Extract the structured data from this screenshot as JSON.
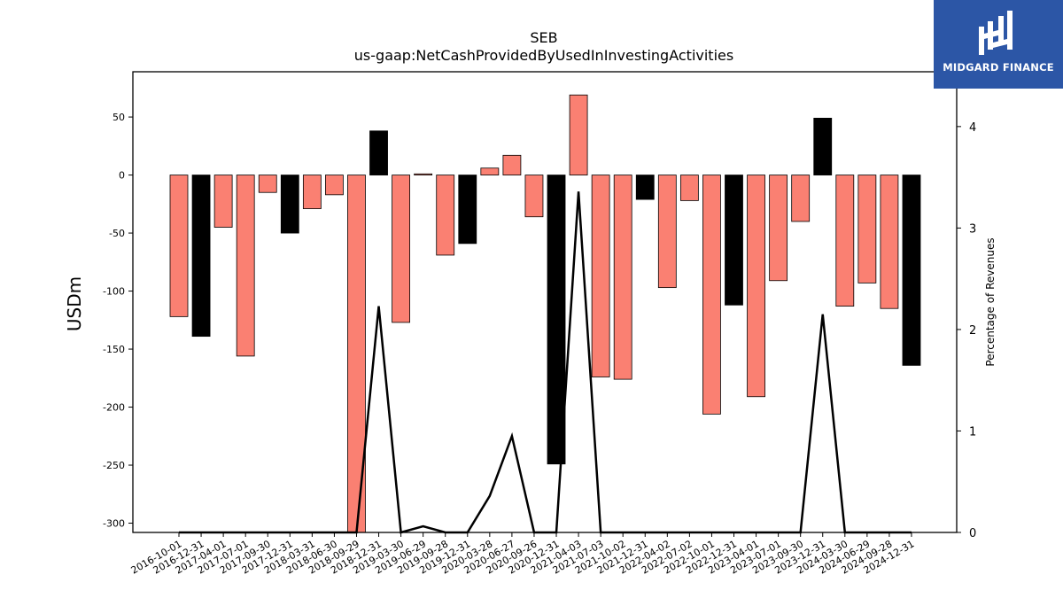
{
  "logo": {
    "text": "MIDGARD FINANCE",
    "color": "#2c56a6"
  },
  "chart_data": {
    "type": "bar",
    "title": "SEB",
    "subtitle": "us-gaap:NetCashProvidedByUsedInInvestingActivities",
    "ylabel": "USDm",
    "y2label": "Percentage of Revenues",
    "ylim": [
      -308,
      89
    ],
    "y2lim": [
      0,
      4.54
    ],
    "yticks": [
      50,
      0,
      -50,
      -100,
      -150,
      -200,
      -250,
      -300
    ],
    "y2ticks": [
      0,
      1,
      2,
      3,
      4
    ],
    "colors": {
      "positive_quarter": "#fa8072",
      "year_end": "#000000",
      "line": "#000000"
    },
    "categories": [
      "2016-10-01",
      "2016-12-31",
      "2017-04-01",
      "2017-07-01",
      "2017-09-30",
      "2017-12-31",
      "2018-03-31",
      "2018-06-30",
      "2018-09-29",
      "2018-12-31",
      "2019-03-30",
      "2019-06-29",
      "2019-09-28",
      "2019-12-31",
      "2020-03-28",
      "2020-06-27",
      "2020-09-26",
      "2020-12-31",
      "2021-04-03",
      "2021-07-03",
      "2021-10-02",
      "2021-12-31",
      "2022-04-02",
      "2022-07-02",
      "2022-10-01",
      "2022-12-31",
      "2023-04-01",
      "2023-07-01",
      "2023-09-30",
      "2023-12-31",
      "2024-03-30",
      "2024-06-29",
      "2024-09-28",
      "2024-12-31"
    ],
    "values": [
      -122,
      -139,
      -45,
      -156,
      -15,
      -50,
      -29,
      -17,
      -310,
      38,
      -127,
      1,
      -69,
      -59,
      6,
      17,
      -36,
      -249,
      69,
      -174,
      -176,
      -21,
      -97,
      -22,
      -206,
      -112,
      -191,
      -91,
      -40,
      49,
      -113,
      -93,
      -115,
      -164
    ],
    "year_end_flags": [
      false,
      true,
      false,
      false,
      false,
      true,
      false,
      false,
      false,
      true,
      false,
      false,
      false,
      true,
      false,
      false,
      false,
      true,
      false,
      false,
      false,
      true,
      false,
      false,
      false,
      true,
      false,
      false,
      false,
      true,
      false,
      false,
      false,
      true
    ],
    "line_series": {
      "name": "",
      "values": [
        0,
        0,
        0,
        0,
        0,
        0,
        0,
        0,
        0,
        2.23,
        0,
        0.06,
        0,
        0,
        0.36,
        0.95,
        0,
        0,
        3.36,
        0,
        0,
        0,
        0,
        0,
        0,
        0,
        0,
        0,
        0,
        2.15,
        0,
        0,
        0,
        0
      ]
    },
    "grid": false,
    "legend": "none"
  }
}
